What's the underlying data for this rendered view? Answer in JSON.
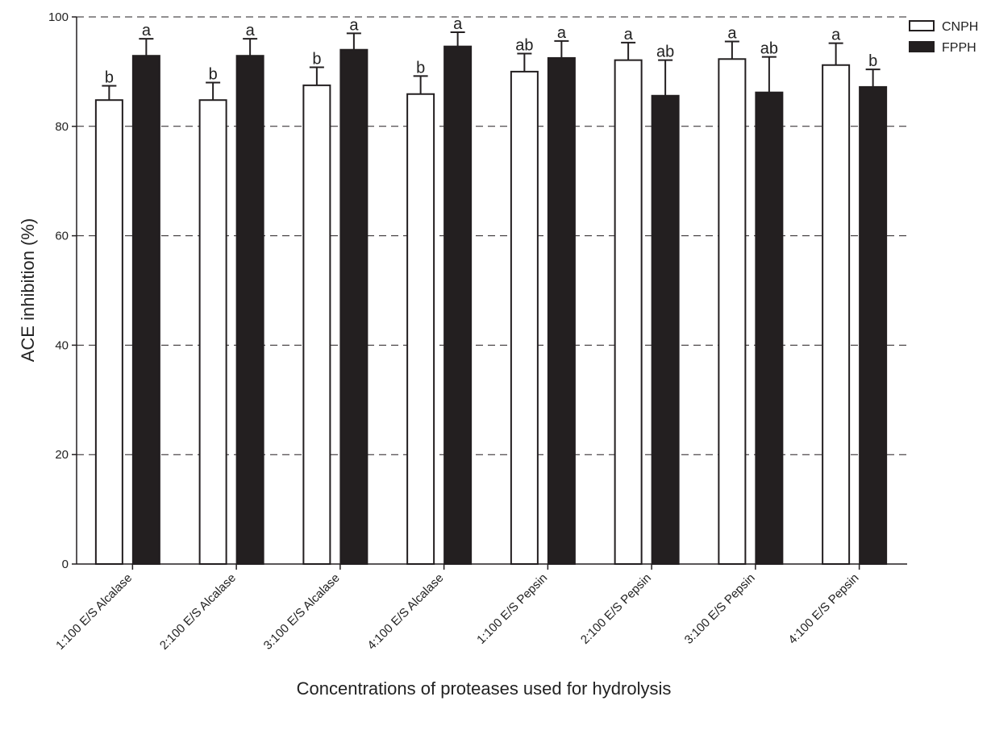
{
  "chart_data": {
    "type": "bar",
    "title": "",
    "xlabel": "Concentrations of proteases used for hydrolysis",
    "ylabel": "ACE inhibition (%)",
    "ylim": [
      0,
      100
    ],
    "yticks": [
      0,
      20,
      40,
      60,
      80,
      100
    ],
    "grid": "horizontal dashed at 20, 40, 60, 80, 100",
    "legend_position": "top-right",
    "categories": [
      "1:100 E/S Alcalase",
      "2:100 E/S Alcalase",
      "3:100 E/S Alcalase",
      "4:100 E/S Alcalase",
      "1:100 E/S Pepsin",
      "2:100 E/S Pepsin",
      "3:100 E/S Pepsin",
      "4:100 E/S Pepsin"
    ],
    "series": [
      {
        "name": "CNPH",
        "fill": "#ffffff",
        "values": [
          84.8,
          84.8,
          87.5,
          85.9,
          90.0,
          92.1,
          92.3,
          91.2
        ],
        "errors": [
          2.6,
          3.2,
          3.3,
          3.3,
          3.3,
          3.2,
          3.2,
          4.0
        ],
        "labels": [
          "b",
          "b",
          "b",
          "b",
          "ab",
          "a",
          "a",
          "a"
        ]
      },
      {
        "name": "FPPH",
        "fill": "#231f20",
        "values": [
          92.9,
          92.9,
          94.0,
          94.6,
          92.5,
          85.6,
          86.2,
          87.2
        ],
        "errors": [
          3.1,
          3.1,
          3.0,
          2.6,
          3.1,
          6.5,
          6.5,
          3.2
        ],
        "labels": [
          "a",
          "a",
          "a",
          "a",
          "a",
          "ab",
          "ab",
          "b"
        ]
      }
    ]
  }
}
